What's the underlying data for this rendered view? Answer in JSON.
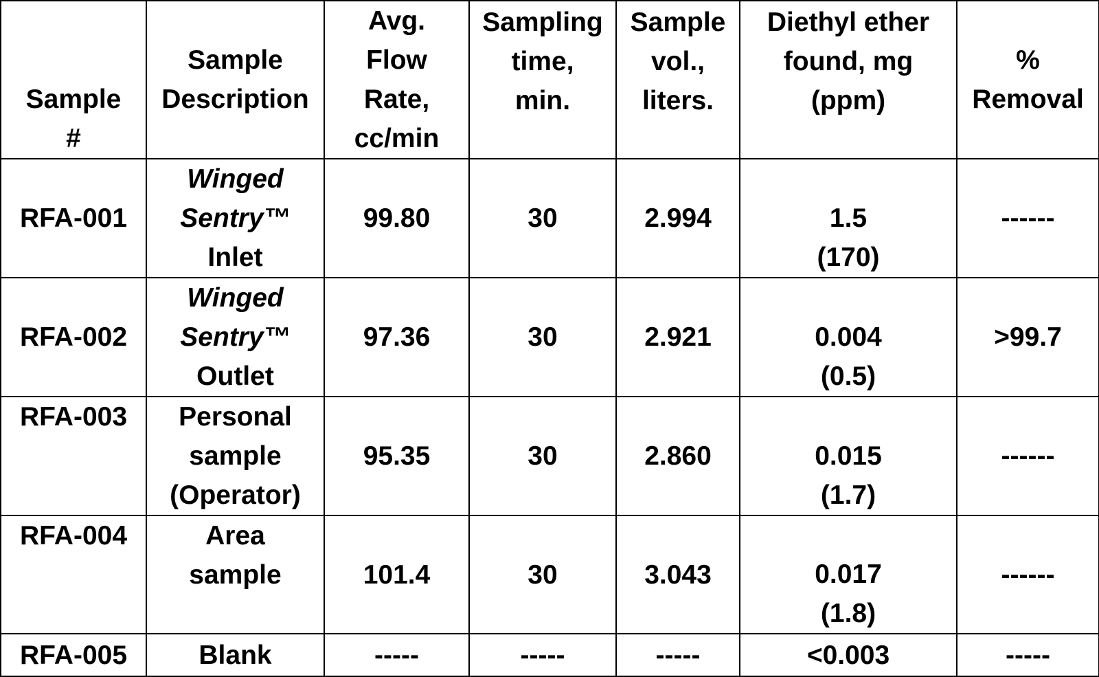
{
  "table": {
    "headers": [
      [
        "Sample",
        "#"
      ],
      [
        "Sample",
        "Description"
      ],
      [
        "Avg.",
        "Flow",
        "Rate,",
        "cc/min"
      ],
      [
        "Sampling",
        "time,",
        "min."
      ],
      [
        "Sample",
        "vol.,",
        "liters."
      ],
      [
        "Diethyl ether",
        "found, mg",
        "(ppm)"
      ],
      [
        "%",
        "Removal"
      ]
    ],
    "rows": [
      {
        "sample": "RFA-001",
        "description": {
          "italic": [
            "Winged",
            "Sentry™"
          ],
          "plain": [
            "Inlet"
          ]
        },
        "flow": "99.80",
        "time": "30",
        "volume": "2.994",
        "found": [
          "1.5",
          "(170)"
        ],
        "removal": "------"
      },
      {
        "sample": "RFA-002",
        "description": {
          "italic": [
            "Winged",
            "Sentry™"
          ],
          "plain": [
            "Outlet"
          ]
        },
        "flow": "97.36",
        "time": "30",
        "volume": "2.921",
        "found": [
          "0.004",
          "(0.5)"
        ],
        "removal": ">99.7"
      },
      {
        "sample": "RFA-003",
        "description": {
          "italic": [],
          "plain": [
            "Personal",
            "sample",
            "(Operator)"
          ]
        },
        "flow": "95.35",
        "time": "30",
        "volume": "2.860",
        "found": [
          "0.015",
          "(1.7)"
        ],
        "removal": "------"
      },
      {
        "sample": "RFA-004",
        "description": {
          "italic": [],
          "plain": [
            "Area",
            "sample"
          ]
        },
        "flow": "101.4",
        "time": "30",
        "volume": "3.043",
        "found": [
          "0.017",
          "(1.8)"
        ],
        "removal": "------"
      },
      {
        "sample": "RFA-005",
        "description": {
          "italic": [],
          "plain": [
            "Blank"
          ]
        },
        "flow": "-----",
        "time": "-----",
        "volume": "-----",
        "found": [
          "<0.003"
        ],
        "removal": "-----"
      }
    ]
  }
}
